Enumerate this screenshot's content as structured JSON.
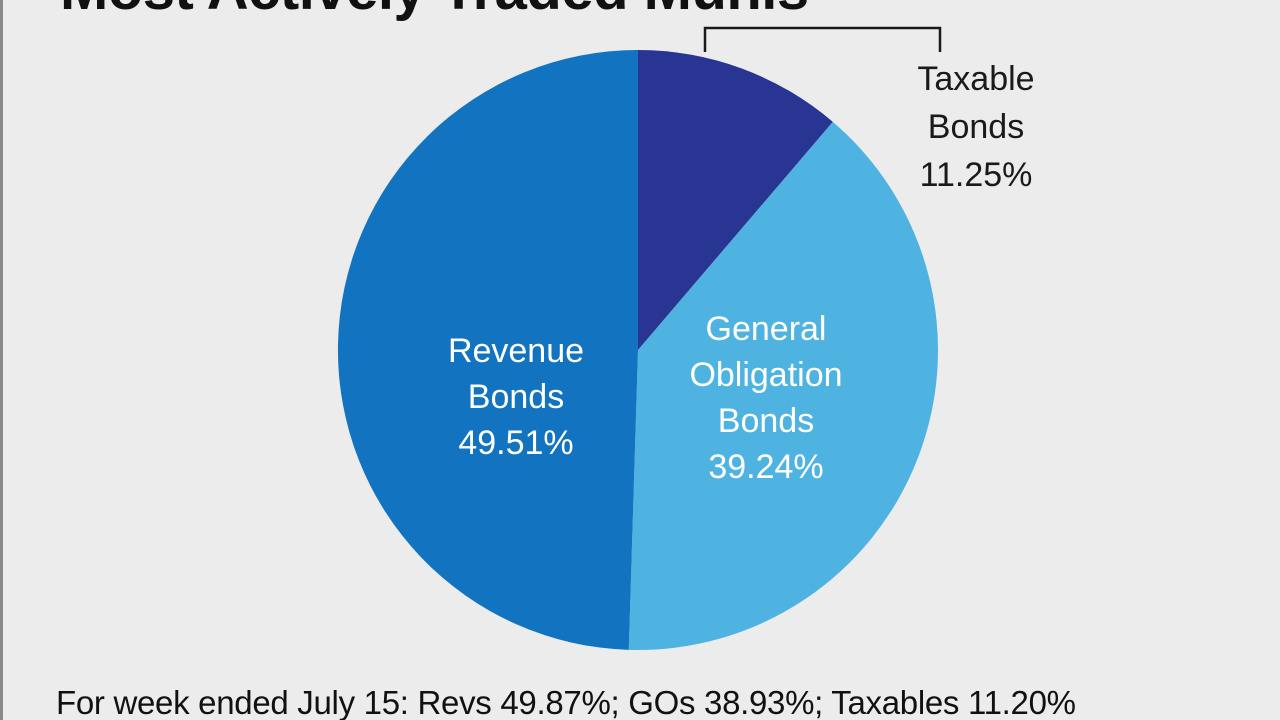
{
  "chart_data": {
    "type": "pie",
    "title": "Most Actively Traded Munis",
    "slices": [
      {
        "label": "Taxable Bonds",
        "label_lines": [
          "Taxable",
          "Bonds"
        ],
        "value": 11.25,
        "value_text": "11.25%",
        "color": "#283593",
        "label_color": "#1a1a1a"
      },
      {
        "label": "General Obligation Bonds",
        "label_lines": [
          "General",
          "Obligation",
          "Bonds"
        ],
        "value": 39.24,
        "value_text": "39.24%",
        "color": "#4fb3e2",
        "label_color": "#ffffff"
      },
      {
        "label": "Revenue Bonds",
        "label_lines": [
          "Revenue",
          "Bonds"
        ],
        "value": 49.51,
        "value_text": "49.51%",
        "color": "#1273c0",
        "label_color": "#ffffff"
      }
    ],
    "start_angle_deg": 0,
    "direction": "clockwise",
    "note": "For week ended July 15: Revs 49.87%; GOs 38.93%; Taxables 11.20%"
  },
  "colors": {
    "background": "#ececec",
    "callout_line": "#1a1a1a"
  }
}
